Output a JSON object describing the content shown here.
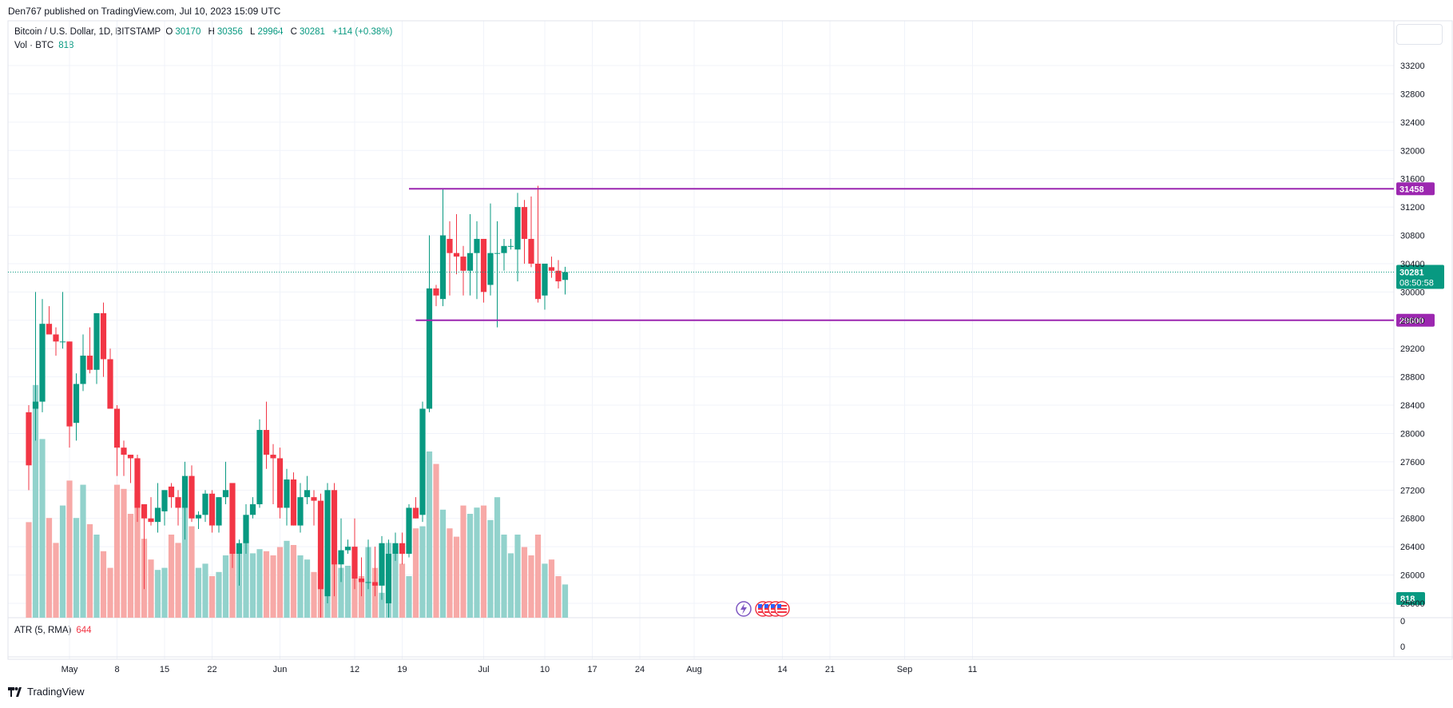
{
  "header": {
    "published": "Den767 published on TradingView.com, Jul 10, 2023 15:09 UTC"
  },
  "legend": {
    "symbol": "Bitcoin / U.S. Dollar, 1D, BITSTAMP",
    "o_label": "O",
    "o_value": "30170",
    "h_label": "H",
    "h_value": "30356",
    "l_label": "L",
    "l_value": "29964",
    "c_label": "C",
    "c_value": "30281",
    "change": "+114 (+0.38%)",
    "vol_label": "Vol · BTC",
    "vol_value": "818",
    "atr_label": "ATR (5, RMA)",
    "atr_value": "644"
  },
  "brand": {
    "name": "TradingView"
  },
  "colors": {
    "up": "#089981",
    "down": "#f23645",
    "vol_up": "#92d2cc",
    "vol_down": "#f7a9a7",
    "level": "#9c27b0",
    "grid": "#f0f3fa"
  },
  "chart_data": {
    "type": "candlestick",
    "price_axis": {
      "ticks": [
        25600,
        26000,
        26400,
        26800,
        27200,
        27600,
        28000,
        28400,
        28800,
        29200,
        29600,
        30000,
        30400,
        30800,
        31200,
        31600,
        32000,
        32400,
        32800,
        33200
      ],
      "range": [
        25540,
        33480
      ]
    },
    "atr_axis_ticks": [
      "0",
      "0"
    ],
    "time_axis": {
      "labels": [
        "May",
        "8",
        "15",
        "22",
        "Jun",
        "12",
        "19",
        "Jul",
        "10",
        "17",
        "24",
        "Aug",
        "14",
        "21",
        "Sep",
        "11"
      ],
      "label_day_index": [
        0,
        7,
        14,
        21,
        31,
        42,
        49,
        61,
        70,
        77,
        84,
        92,
        105,
        112,
        123,
        133
      ]
    },
    "current_price": {
      "value": 30281,
      "label": "30281",
      "countdown": "08:50:58"
    },
    "volume_tag": "818",
    "levels": [
      {
        "value": 31458,
        "label": "31458",
        "start_day": 50
      },
      {
        "value": 29600,
        "label": "29600",
        "start_day": 51
      }
    ],
    "candles": [
      [
        -6,
        28300,
        28400,
        27200,
        27550,
        230
      ],
      [
        -5,
        28350,
        30000,
        27900,
        28450,
        560
      ],
      [
        -4,
        28450,
        29900,
        28300,
        29550,
        430
      ],
      [
        -3,
        29550,
        29800,
        29400,
        29400,
        240
      ],
      [
        -2,
        29400,
        29500,
        29100,
        29300,
        180
      ],
      [
        -1,
        29300,
        30000,
        29200,
        29300,
        270
      ],
      [
        0,
        29300,
        29300,
        27800,
        28100,
        330
      ],
      [
        1,
        28150,
        28850,
        27900,
        28700,
        240
      ],
      [
        2,
        28700,
        29400,
        28600,
        29100,
        320
      ],
      [
        3,
        29100,
        29500,
        28850,
        28900,
        225
      ],
      [
        4,
        28900,
        29700,
        28700,
        29700,
        200
      ],
      [
        5,
        29700,
        29850,
        28800,
        29050,
        160
      ],
      [
        6,
        29050,
        29200,
        28400,
        28350,
        120
      ],
      [
        7,
        28350,
        28400,
        27400,
        27800,
        320
      ],
      [
        8,
        27800,
        27900,
        27400,
        27700,
        310
      ],
      [
        9,
        27700,
        27700,
        27300,
        27650,
        250
      ],
      [
        10,
        27650,
        27700,
        26750,
        26950,
        300
      ],
      [
        11,
        27000,
        27000,
        25800,
        26800,
        190
      ],
      [
        12,
        26800,
        27100,
        26700,
        26750,
        140
      ],
      [
        13,
        26750,
        27300,
        26600,
        26950,
        115
      ],
      [
        14,
        26900,
        27200,
        26700,
        27200,
        120
      ],
      [
        15,
        27250,
        27300,
        26950,
        27100,
        200
      ],
      [
        16,
        27100,
        27200,
        26700,
        26950,
        180
      ],
      [
        17,
        26950,
        27600,
        26500,
        27400,
        270
      ],
      [
        18,
        27400,
        27550,
        26750,
        26800,
        220
      ],
      [
        19,
        26800,
        26900,
        26650,
        26850,
        120
      ],
      [
        20,
        26850,
        27200,
        26750,
        27150,
        130
      ],
      [
        21,
        27150,
        27200,
        26600,
        26700,
        100
      ],
      [
        22,
        26700,
        27100,
        26600,
        27100,
        110
      ],
      [
        23,
        27100,
        27600,
        27000,
        27200,
        150
      ],
      [
        24,
        27300,
        27300,
        26100,
        26300,
        170
      ],
      [
        25,
        26300,
        26500,
        25850,
        26450,
        165
      ],
      [
        26,
        26450,
        27000,
        26300,
        26850,
        185
      ],
      [
        27,
        26850,
        27100,
        26800,
        27000,
        155
      ],
      [
        28,
        27000,
        28200,
        26950,
        28050,
        165
      ],
      [
        29,
        28050,
        28450,
        27500,
        27700,
        160
      ],
      [
        30,
        27700,
        27850,
        27000,
        27650,
        150
      ],
      [
        31,
        27650,
        27800,
        26800,
        26950,
        170
      ],
      [
        32,
        26950,
        27500,
        26700,
        27350,
        185
      ],
      [
        33,
        27350,
        27450,
        26700,
        26700,
        175
      ],
      [
        34,
        26700,
        27300,
        26600,
        27100,
        150
      ],
      [
        35,
        27100,
        27400,
        27000,
        27200,
        140
      ],
      [
        36,
        27100,
        27200,
        26700,
        27050,
        110
      ],
      [
        37,
        27050,
        27150,
        25400,
        25800,
        140
      ],
      [
        38,
        25700,
        27300,
        25600,
        27200,
        100
      ],
      [
        39,
        27200,
        27300,
        25700,
        26150,
        130
      ],
      [
        40,
        26150,
        26800,
        25900,
        26350,
        120
      ],
      [
        41,
        26350,
        26500,
        26300,
        26400,
        125
      ],
      [
        42,
        26400,
        26800,
        25800,
        25950,
        110
      ],
      [
        43,
        25950,
        26250,
        25700,
        25900,
        100
      ],
      [
        44,
        25900,
        26500,
        25800,
        25900,
        170
      ],
      [
        45,
        25900,
        26400,
        25700,
        25850,
        120
      ],
      [
        46,
        25850,
        26550,
        25650,
        26450,
        60
      ],
      [
        47,
        25600,
        26500,
        25400,
        26300,
        180
      ],
      [
        48,
        26300,
        26600,
        26200,
        26450,
        165
      ],
      [
        49,
        26450,
        26600,
        26150,
        26300,
        130
      ],
      [
        50,
        26300,
        27000,
        26250,
        26950,
        100
      ],
      [
        51,
        26950,
        27100,
        26800,
        26800,
        215
      ],
      [
        52,
        26850,
        28450,
        26750,
        28350,
        220
      ],
      [
        53,
        28350,
        30800,
        28300,
        30050,
        400
      ],
      [
        54,
        30050,
        30100,
        29800,
        29950,
        370
      ],
      [
        55,
        29900,
        31450,
        29800,
        30800,
        260
      ],
      [
        56,
        30750,
        31000,
        29950,
        30550,
        215
      ],
      [
        57,
        30550,
        31100,
        30250,
        30500,
        195
      ],
      [
        58,
        30500,
        30650,
        29950,
        30300,
        270
      ],
      [
        59,
        30300,
        31100,
        29950,
        30550,
        250
      ],
      [
        60,
        30550,
        31000,
        29900,
        30750,
        265
      ],
      [
        61,
        30750,
        30750,
        29850,
        30000,
        270
      ],
      [
        62,
        30100,
        31250,
        29950,
        30550,
        235
      ],
      [
        63,
        30550,
        31000,
        29500,
        30550,
        290
      ],
      [
        64,
        30550,
        30750,
        30300,
        30650,
        200
      ],
      [
        65,
        30650,
        30750,
        30600,
        30650,
        155
      ],
      [
        66,
        30600,
        31400,
        30150,
        31200,
        200
      ],
      [
        67,
        31200,
        31300,
        30400,
        30750,
        170
      ],
      [
        68,
        30750,
        31350,
        30350,
        30400,
        150
      ],
      [
        69,
        30400,
        31500,
        29850,
        29900,
        200
      ],
      [
        70,
        29950,
        30400,
        29750,
        30400,
        130
      ],
      [
        71,
        30350,
        30500,
        30200,
        30300,
        140
      ],
      [
        72,
        30300,
        30450,
        30050,
        30150,
        100
      ],
      [
        73,
        30170,
        30356,
        29964,
        30281,
        80
      ]
    ]
  }
}
